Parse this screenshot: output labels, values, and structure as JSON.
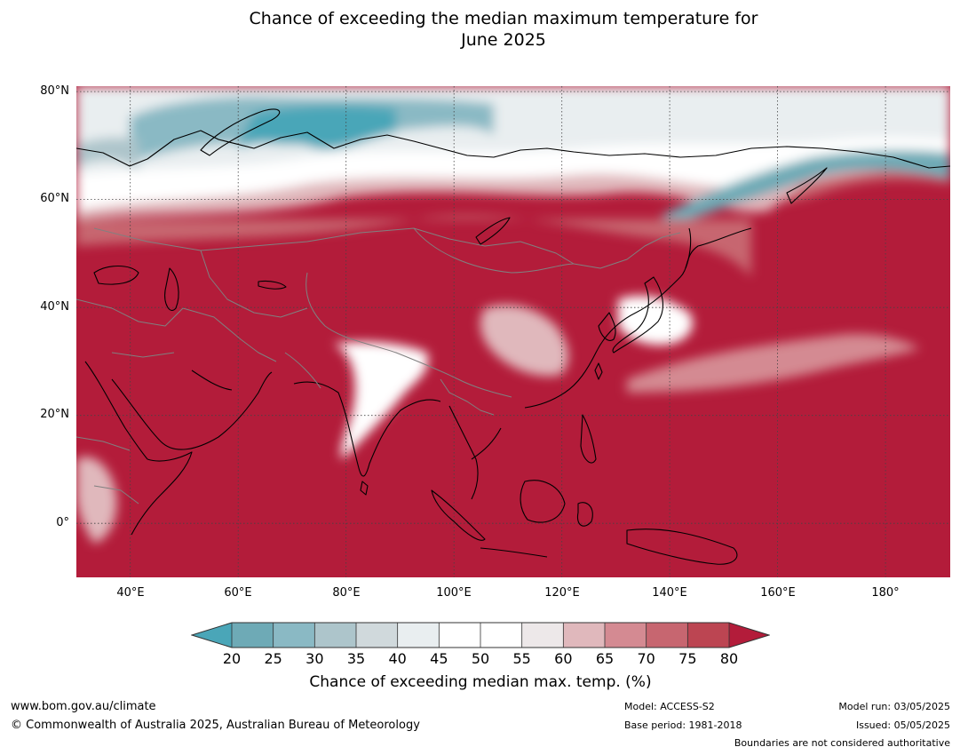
{
  "title": {
    "line1": "Chance of exceeding the median maximum temperature for",
    "line2": "June 2025"
  },
  "map_data": {
    "projection": "equirectangular",
    "lon_range": [
      30,
      192
    ],
    "lat_range": [
      -10,
      81
    ],
    "lat_ticks": [
      {
        "value": 80,
        "label": "80°N"
      },
      {
        "value": 60,
        "label": "60°N"
      },
      {
        "value": 40,
        "label": "40°N"
      },
      {
        "value": 20,
        "label": "20°N"
      },
      {
        "value": 0,
        "label": "0°"
      }
    ],
    "lon_ticks": [
      {
        "value": 40,
        "label": "40°E"
      },
      {
        "value": 60,
        "label": "60°E"
      },
      {
        "value": 80,
        "label": "80°E"
      },
      {
        "value": 100,
        "label": "100°E"
      },
      {
        "value": 120,
        "label": "120°E"
      },
      {
        "value": 140,
        "label": "140°E"
      },
      {
        "value": 160,
        "label": "160°E"
      },
      {
        "value": 180,
        "label": "180°"
      }
    ],
    "gridlines": "dotted",
    "dominant_category": "above 80%"
  },
  "colorbar": {
    "ticks": [
      "20",
      "25",
      "30",
      "35",
      "40",
      "45",
      "50",
      "55",
      "60",
      "65",
      "70",
      "75",
      "80"
    ],
    "colors": [
      "#4aa6b8",
      "#6eaab6",
      "#8ab9c4",
      "#adc5cb",
      "#d0d9dc",
      "#e9eef0",
      "#ffffff",
      "#ffffff",
      "#ede8e9",
      "#e0b8bc",
      "#d48a92",
      "#c76670",
      "#bc4552",
      "#b31c3a"
    ],
    "label": "Chance of exceeding median max. temp. (%)"
  },
  "footer": {
    "website": "www.bom.gov.au/climate",
    "copyright": "© Commonwealth of Australia 2025, Australian Bureau of Meteorology",
    "model": "Model: ACCESS-S2",
    "base_period": "Base period: 1981-2018",
    "model_run": "Model run: 03/05/2025",
    "issued": "Issued: 05/05/2025",
    "disclaimer": "Boundaries are not considered authoritative"
  }
}
